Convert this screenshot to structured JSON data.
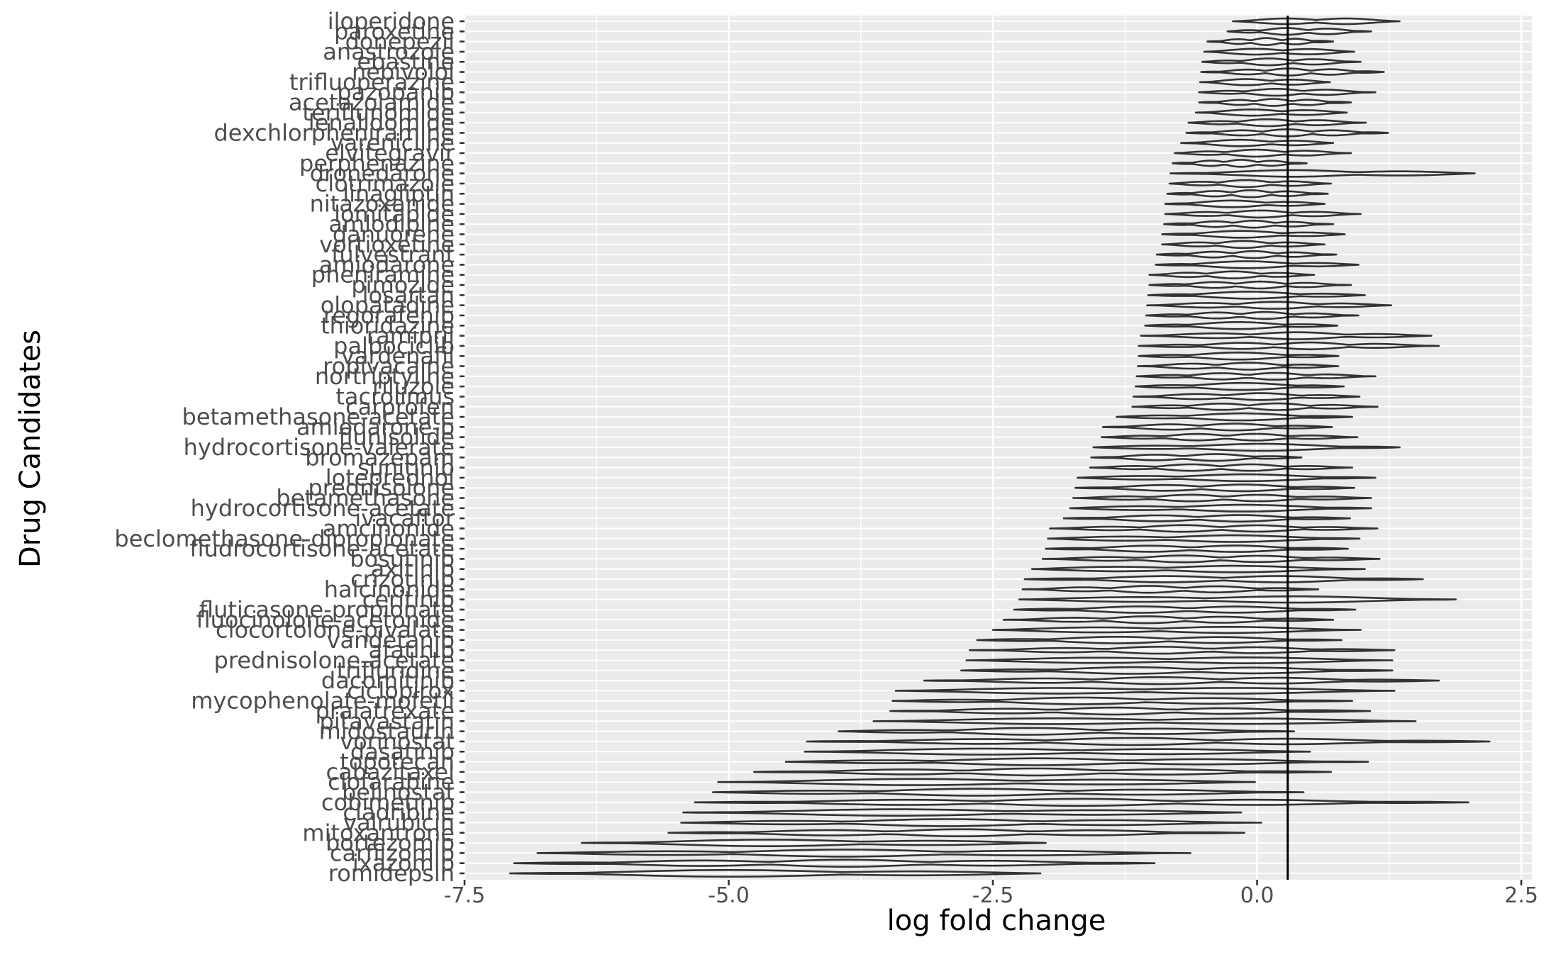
{
  "chart_data": {
    "type": "violin",
    "orientation": "horizontal",
    "xlabel": "log fold change",
    "ylabel": "Drug Candidates",
    "xlim": [
      -7.5,
      2.6
    ],
    "xticks": [
      -7.5,
      -5.0,
      -2.5,
      0.0,
      2.5
    ],
    "xtick_labels": [
      "-7.5",
      "-5.0",
      "-2.5",
      "0.0",
      "2.5"
    ],
    "reference_line_x": 0.29,
    "grid": true,
    "colors": {
      "panel_background": "#ebebeb",
      "grid_line": "#ffffff",
      "violin_stroke": "#333333",
      "reference_line": "#000000"
    },
    "categories": [
      "iloperidone",
      "paroxetine",
      "donepezil",
      "anastrozole",
      "ebastine",
      "nebivolol",
      "trifluoperazine",
      "pazopanib",
      "acetazolamide",
      "teriflunomide",
      "lenalidomide",
      "dexchlorpheniramine",
      "varenicline",
      "elvitegravir",
      "perphenazine",
      "dronedarone",
      "clotrimazole",
      "linagliptin",
      "nitazoxanide",
      "lomitapide",
      "amlodipine",
      "danuorene",
      "vortioxetine",
      "fulvestrant",
      "amiodarone",
      "pheniramine",
      "pimozide",
      "losartan",
      "olopatadine",
      "regorafenib",
      "thioridazine",
      "ramipril",
      "palbociclib",
      "vardenafil",
      "ropivacaine",
      "nortriptyline",
      "riluzole",
      "tacrolimus",
      "carprofen",
      "betamethasone-acetate",
      "amiodarone-b",
      "flunisolide",
      "hydrocortisone-valerate",
      "bromazepam",
      "sunitinib",
      "loteprednol",
      "prednisolone",
      "betamethasone",
      "hydrocortisone-acetate",
      "ivacaftor",
      "amcinonide",
      "beclomethasone-dipropionate",
      "fludrocortisone-acetate",
      "bosutinib",
      "axitinib",
      "crizotinib",
      "halcinonide",
      "ceritinib",
      "fluticasone-propionate",
      "fluocinolone-acetonide",
      "clocortolone-pivalate",
      "vandetanib",
      "afatinib",
      "prednisolone-acetate",
      "trifluridine",
      "dacomitinib",
      "ciclopirox",
      "mycophenolate-mofetil",
      "pralatrexate",
      "pitavastatin",
      "midostaurin",
      "vorinostat",
      "dasatinib",
      "topotecan",
      "cabazitaxel",
      "clofarabine",
      "belinostat",
      "cobimetinib",
      "cladribine",
      "valrubicin",
      "mitoxantrone",
      "bortezomib",
      "carfilzomib",
      "ixazomib",
      "romidepsin"
    ],
    "series": [
      {
        "label": "iloperidone",
        "min": -0.23,
        "max": 1.35
      },
      {
        "label": "paroxetine",
        "min": -0.28,
        "max": 1.08
      },
      {
        "label": "donepezil",
        "min": -0.47,
        "max": 0.72
      },
      {
        "label": "anastrozole",
        "min": -0.5,
        "max": 0.92
      },
      {
        "label": "ebastine",
        "min": -0.52,
        "max": 0.98
      },
      {
        "label": "nebivolol",
        "min": -0.53,
        "max": 1.2
      },
      {
        "label": "trifluoperazine",
        "min": -0.54,
        "max": 0.69
      },
      {
        "label": "pazopanib",
        "min": -0.55,
        "max": 1.12
      },
      {
        "label": "acetazolamide",
        "min": -0.55,
        "max": 0.89
      },
      {
        "label": "teriflunomide",
        "min": -0.58,
        "max": 0.85
      },
      {
        "label": "lenalidomide",
        "min": -0.65,
        "max": 1.03
      },
      {
        "label": "dexchlorpheniramine",
        "min": -0.67,
        "max": 1.24
      },
      {
        "label": "varenicline",
        "min": -0.72,
        "max": 0.72
      },
      {
        "label": "elvitegravir",
        "min": -0.78,
        "max": 0.89
      },
      {
        "label": "perphenazine",
        "min": -0.8,
        "max": 0.47
      },
      {
        "label": "dronedarone",
        "min": -0.82,
        "max": 2.06
      },
      {
        "label": "clotrimazole",
        "min": -0.83,
        "max": 0.7
      },
      {
        "label": "linagliptin",
        "min": -0.85,
        "max": 0.67
      },
      {
        "label": "nitazoxanide",
        "min": -0.87,
        "max": 0.64
      },
      {
        "label": "lomitapide",
        "min": -0.87,
        "max": 0.98
      },
      {
        "label": "amlodipine",
        "min": -0.88,
        "max": 0.72
      },
      {
        "label": "danuorene",
        "min": -0.9,
        "max": 0.83
      },
      {
        "label": "vortioxetine",
        "min": -0.9,
        "max": 0.64
      },
      {
        "label": "fulvestrant",
        "min": -0.95,
        "max": 0.75
      },
      {
        "label": "amiodarone",
        "min": -0.96,
        "max": 0.96
      },
      {
        "label": "pheniramine",
        "min": -1.02,
        "max": 0.54
      },
      {
        "label": "pimozide",
        "min": -1.02,
        "max": 0.89
      },
      {
        "label": "losartan",
        "min": -1.03,
        "max": 1.02
      },
      {
        "label": "olopatadine",
        "min": -1.04,
        "max": 1.27
      },
      {
        "label": "regorafenib",
        "min": -1.05,
        "max": 0.96
      },
      {
        "label": "thioridazine",
        "min": -1.06,
        "max": 0.76
      },
      {
        "label": "ramipril",
        "min": -1.1,
        "max": 1.65
      },
      {
        "label": "palbociclib",
        "min": -1.12,
        "max": 1.72
      },
      {
        "label": "vardenafil",
        "min": -1.12,
        "max": 0.77
      },
      {
        "label": "ropivacaine",
        "min": -1.13,
        "max": 0.77
      },
      {
        "label": "nortriptyline",
        "min": -1.14,
        "max": 1.12
      },
      {
        "label": "riluzole",
        "min": -1.15,
        "max": 0.82
      },
      {
        "label": "tacrolimus",
        "min": -1.17,
        "max": 0.97
      },
      {
        "label": "carprofen",
        "min": -1.18,
        "max": 1.14
      },
      {
        "label": "betamethasone-acetate",
        "min": -1.33,
        "max": 0.9
      },
      {
        "label": "amiodarone-b",
        "min": -1.46,
        "max": 0.71
      },
      {
        "label": "flunisolide",
        "min": -1.47,
        "max": 0.95
      },
      {
        "label": "hydrocortisone-valerate",
        "min": -1.55,
        "max": 1.35
      },
      {
        "label": "bromazepam",
        "min": -1.57,
        "max": 0.42
      },
      {
        "label": "sunitinib",
        "min": -1.58,
        "max": 0.9
      },
      {
        "label": "loteprednol",
        "min": -1.7,
        "max": 1.12
      },
      {
        "label": "prednisolone",
        "min": -1.72,
        "max": 0.92
      },
      {
        "label": "betamethasone",
        "min": -1.74,
        "max": 1.08
      },
      {
        "label": "hydrocortisone-acetate",
        "min": -1.77,
        "max": 1.08
      },
      {
        "label": "ivacaftor",
        "min": -1.83,
        "max": 0.88
      },
      {
        "label": "amcinonide",
        "min": -1.96,
        "max": 1.14
      },
      {
        "label": "beclomethasone-dipropionate",
        "min": -1.98,
        "max": 0.97
      },
      {
        "label": "fludrocortisone-acetate",
        "min": -2.0,
        "max": 0.86
      },
      {
        "label": "bosutinib",
        "min": -2.03,
        "max": 1.16
      },
      {
        "label": "axitinib",
        "min": -2.13,
        "max": 1.02
      },
      {
        "label": "crizotinib",
        "min": -2.2,
        "max": 1.57
      },
      {
        "label": "halcinonide",
        "min": -2.22,
        "max": 0.58
      },
      {
        "label": "ceritinib",
        "min": -2.25,
        "max": 1.88
      },
      {
        "label": "fluticasone-propionate",
        "min": -2.3,
        "max": 0.93
      },
      {
        "label": "fluocinolone-acetonide",
        "min": -2.4,
        "max": 0.72
      },
      {
        "label": "clocortolone-pivalate",
        "min": -2.5,
        "max": 0.98
      },
      {
        "label": "vandetanib",
        "min": -2.65,
        "max": 0.8
      },
      {
        "label": "afatinib",
        "min": -2.72,
        "max": 1.3
      },
      {
        "label": "prednisolone-acetate",
        "min": -2.75,
        "max": 1.28
      },
      {
        "label": "trifluridine",
        "min": -2.8,
        "max": 1.28
      },
      {
        "label": "dacomitinib",
        "min": -3.15,
        "max": 1.72
      },
      {
        "label": "ciclopirox",
        "min": -3.42,
        "max": 1.3
      },
      {
        "label": "mycophenolate-mofetil",
        "min": -3.45,
        "max": 0.9
      },
      {
        "label": "pralatrexate",
        "min": -3.47,
        "max": 1.07
      },
      {
        "label": "pitavastatin",
        "min": -3.63,
        "max": 1.5
      },
      {
        "label": "midostaurin",
        "min": -3.96,
        "max": 0.35
      },
      {
        "label": "vorinostat",
        "min": -4.26,
        "max": 2.2
      },
      {
        "label": "dasatinib",
        "min": -4.28,
        "max": 0.5
      },
      {
        "label": "topotecan",
        "min": -4.46,
        "max": 1.05
      },
      {
        "label": "cabazitaxel",
        "min": -4.76,
        "max": 0.7
      },
      {
        "label": "clofarabine",
        "min": -5.1,
        "max": -0.02
      },
      {
        "label": "belinostat",
        "min": -5.15,
        "max": 0.44
      },
      {
        "label": "cobimetinib",
        "min": -5.32,
        "max": 2.0
      },
      {
        "label": "cladribine",
        "min": -5.43,
        "max": -0.15
      },
      {
        "label": "valrubicin",
        "min": -5.45,
        "max": 0.04
      },
      {
        "label": "mitoxantrone",
        "min": -5.57,
        "max": -0.12
      },
      {
        "label": "bortezomib",
        "min": -6.39,
        "max": -2.0
      },
      {
        "label": "carfilzomib",
        "min": -6.81,
        "max": -0.63
      },
      {
        "label": "ixazomib",
        "min": -7.03,
        "max": -0.97
      },
      {
        "label": "romidepsin",
        "min": -7.07,
        "max": -2.05
      }
    ]
  }
}
